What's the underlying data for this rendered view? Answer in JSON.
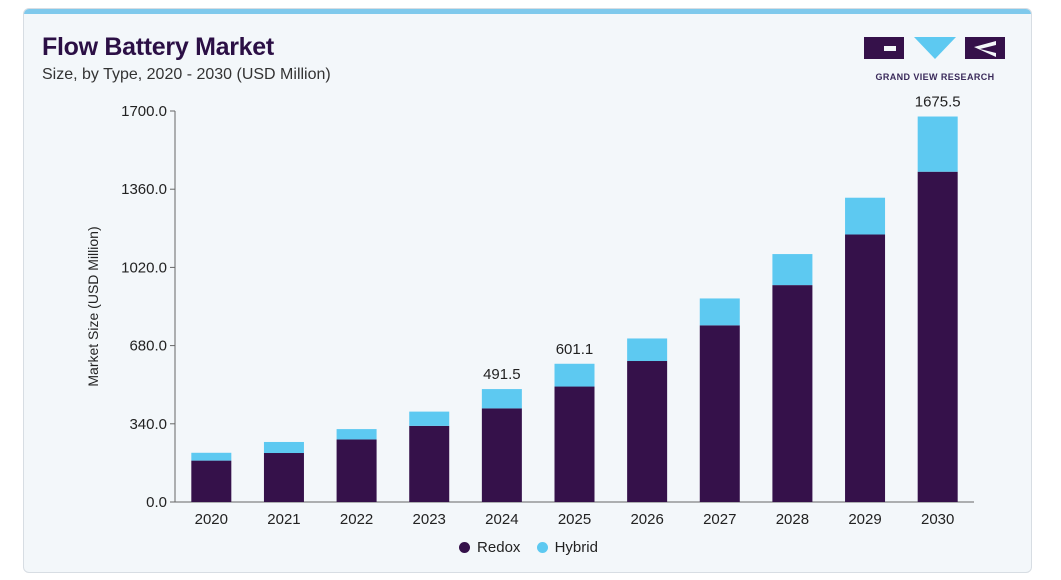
{
  "header": {
    "title": "Flow Battery Market",
    "subtitle": "Size, by Type, 2020 - 2030 (USD Million)",
    "brand": "GRAND VIEW RESEARCH"
  },
  "colors": {
    "redox": "#35114a",
    "hybrid": "#5dc9f1",
    "axis": "#666666",
    "brand_dark": "#2b0f45",
    "brand_blue": "#5dc9f1"
  },
  "chart_data": {
    "type": "bar",
    "stacked": true,
    "title": "Flow Battery Market",
    "subtitle": "Size, by Type, 2020 - 2030 (USD Million)",
    "xlabel": "",
    "ylabel": "Market Size (USD Million)",
    "ylim": [
      0,
      1700
    ],
    "yticks": [
      "0.0",
      "340.0",
      "680.0",
      "1020.0",
      "1360.0",
      "1700.0"
    ],
    "ytick_values": [
      0,
      340,
      680,
      1020,
      1360,
      1700
    ],
    "categories": [
      "2020",
      "2021",
      "2022",
      "2023",
      "2024",
      "2025",
      "2026",
      "2027",
      "2028",
      "2029",
      "2030"
    ],
    "series": [
      {
        "name": "Redox",
        "values": [
          180,
          213,
          272,
          331,
          407,
          502,
          613,
          768,
          943,
          1163,
          1436
        ]
      },
      {
        "name": "Hybrid",
        "values": [
          34,
          48,
          45,
          62,
          84,
          99,
          98,
          117,
          135,
          160,
          240
        ]
      }
    ],
    "totals_labels": {
      "4": "491.5",
      "5": "601.1",
      "10": "1675.5"
    },
    "grid": false,
    "legend": "bottom-center"
  }
}
